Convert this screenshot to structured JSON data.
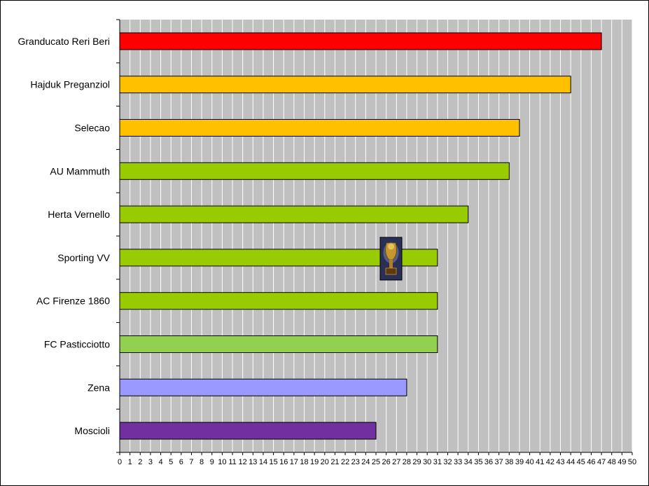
{
  "chart_data": {
    "type": "bar",
    "orientation": "horizontal",
    "title": "",
    "xlabel": "",
    "ylabel": "",
    "xlim": [
      0,
      50
    ],
    "x_ticks": [
      0,
      1,
      2,
      3,
      4,
      5,
      6,
      7,
      8,
      9,
      10,
      11,
      12,
      13,
      14,
      15,
      16,
      17,
      18,
      19,
      20,
      21,
      22,
      23,
      24,
      25,
      26,
      27,
      28,
      29,
      30,
      31,
      32,
      33,
      34,
      35,
      36,
      37,
      38,
      39,
      40,
      41,
      42,
      43,
      44,
      45,
      46,
      47,
      48,
      49,
      50
    ],
    "grid": "vertical",
    "legend": "none",
    "categories": [
      "Granducato Reri Beri",
      "Hajduk Preganziol",
      "Selecao",
      "AU Mammuth",
      "Herta Vernello",
      "Sporting VV",
      "AC Firenze 1860",
      "FC Pasticciotto",
      "Zena",
      "Moscioli"
    ],
    "values": [
      47,
      44,
      39,
      38,
      34,
      31,
      31,
      31,
      28,
      25
    ],
    "bar_colors": [
      "#ff0000",
      "#ffc000",
      "#ffc000",
      "#99cc00",
      "#99cc00",
      "#99cc00",
      "#99cc00",
      "#92d050",
      "#9999ff",
      "#7030a0"
    ],
    "plot_background": "#c0c0c0",
    "gridline_color": "#ffffff",
    "annotation_icon": "trophy-icon",
    "annotation_category": "Sporting VV"
  }
}
